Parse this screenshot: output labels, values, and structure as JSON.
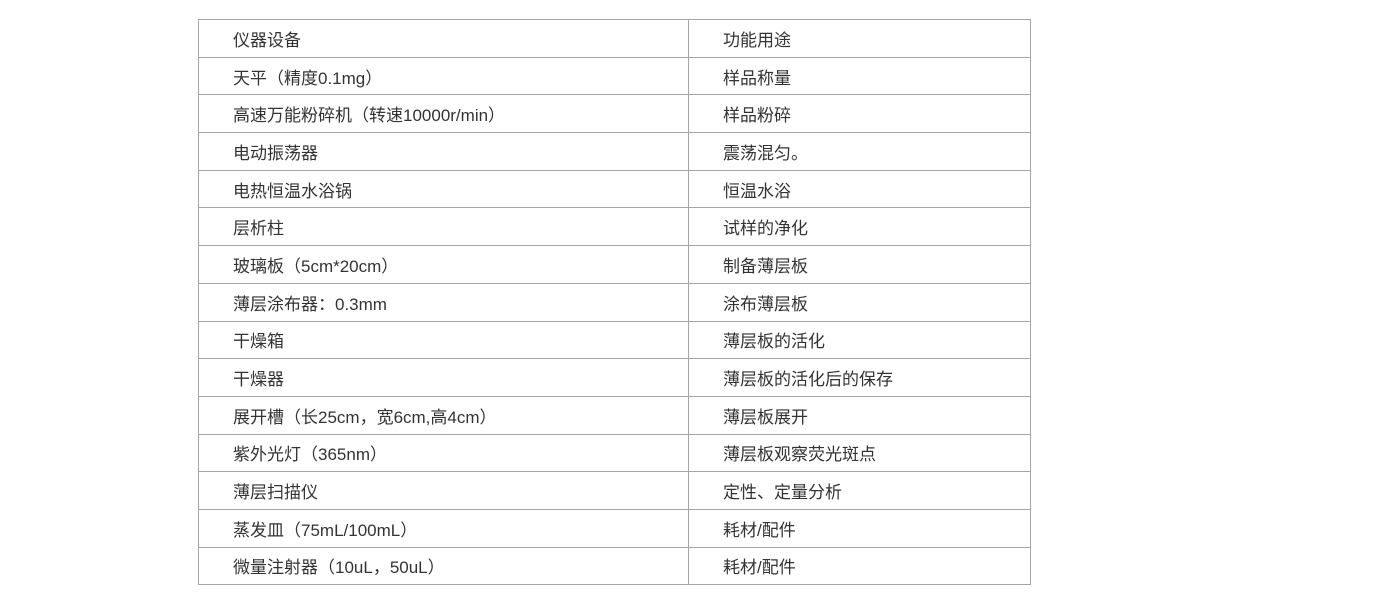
{
  "table": {
    "columns": [
      "仪器设备",
      "功能用途"
    ],
    "rows": [
      [
        "天平（精度0.1mg）",
        "样品称量"
      ],
      [
        "高速万能粉碎机（转速10000r/min）",
        "样品粉碎"
      ],
      [
        "电动振荡器",
        "震荡混匀。"
      ],
      [
        "电热恒温水浴锅",
        "恒温水浴"
      ],
      [
        "层析柱",
        "试样的净化"
      ],
      [
        "玻璃板（5cm*20cm）",
        "制备薄层板"
      ],
      [
        "薄层涂布器：0.3mm",
        "涂布薄层板"
      ],
      [
        "干燥箱",
        "薄层板的活化"
      ],
      [
        "干燥器",
        "薄层板的活化后的保存"
      ],
      [
        "展开槽（长25cm，宽6cm,高4cm）",
        "薄层板展开"
      ],
      [
        "紫外光灯（365nm）",
        "薄层板观察荧光斑点"
      ],
      [
        "薄层扫描仪",
        "定性、定量分析"
      ],
      [
        "蒸发皿（75mL/100mL）",
        "耗材/配件"
      ],
      [
        "微量注射器（10uL，50uL）",
        "耗材/配件"
      ]
    ],
    "border_color": "#a6a6a6",
    "text_color": "#333333",
    "background_color": "#ffffff"
  }
}
